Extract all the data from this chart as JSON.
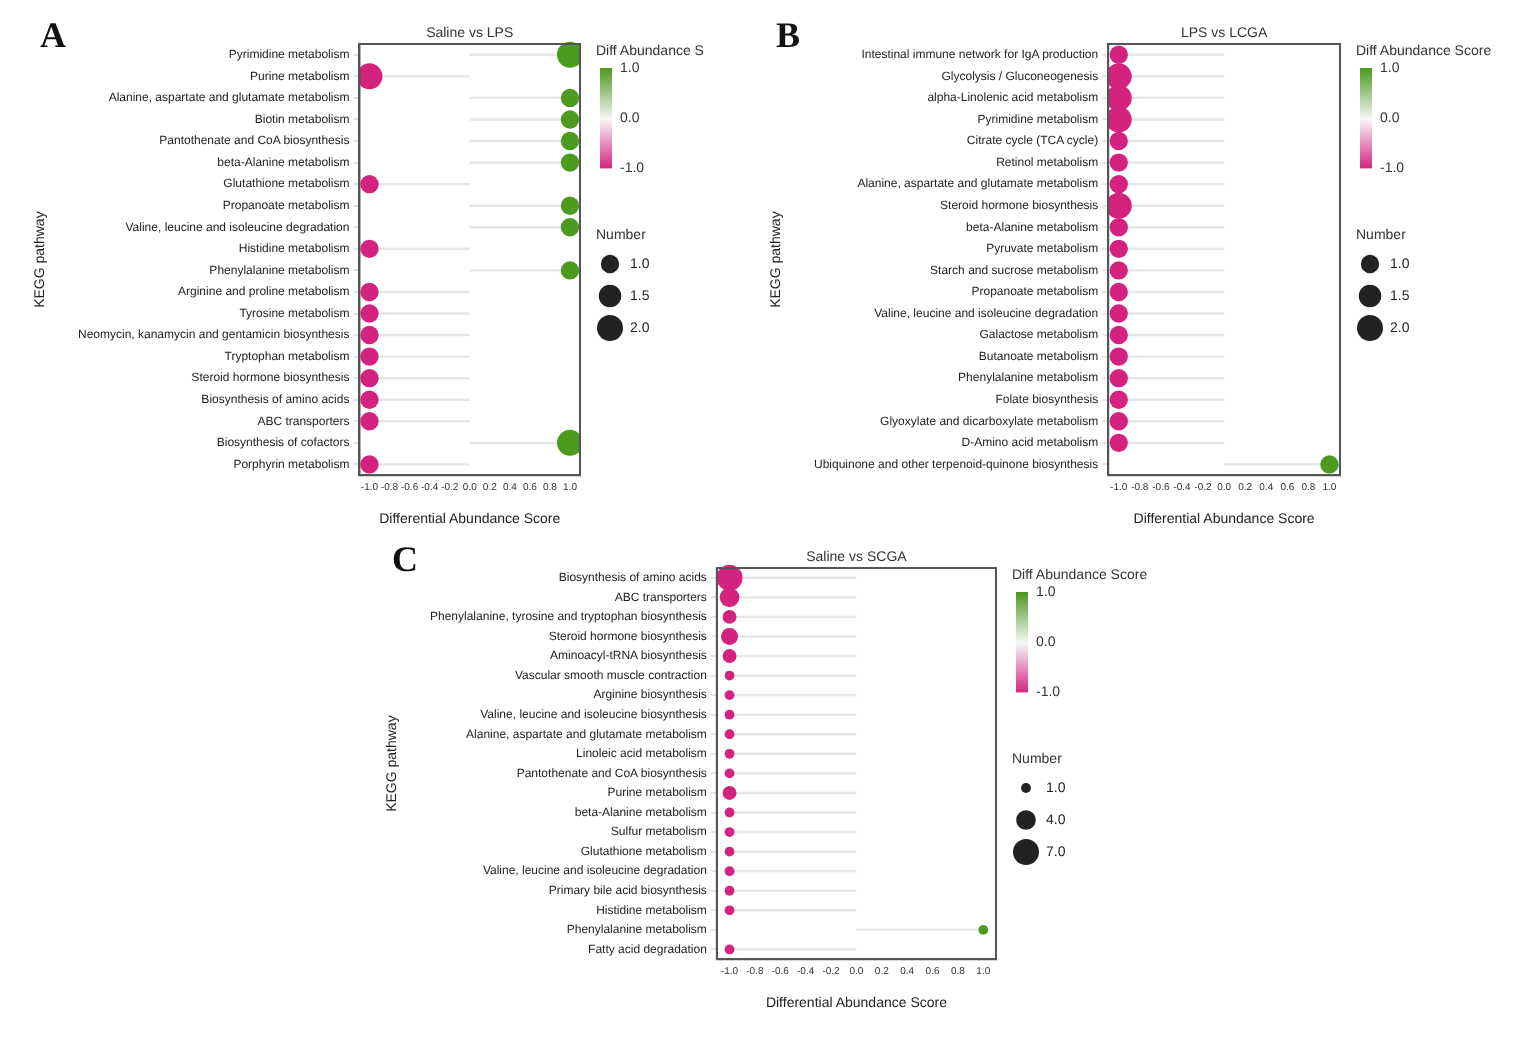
{
  "chart_data": [
    {
      "type": "bubble",
      "orientation": "horizontal",
      "title": "Saline vs LPS",
      "xlabel": "Differential Abundance Score",
      "ylabel": "KEGG pathway",
      "clabel": "Diff Abundance S",
      "legend_title": "Number",
      "annotations": [
        "A"
      ],
      "categories": [
        "Pyrimidine metabolism",
        "Purine metabolism",
        "Alanine, aspartate and glutamate metabolism",
        "Biotin metabolism",
        "Pantothenate and CoA biosynthesis",
        "beta-Alanine metabolism",
        "Glutathione metabolism",
        "Propanoate metabolism",
        "Valine, leucine and isoleucine degradation",
        "Histidine metabolism",
        "Phenylalanine metabolism",
        "Arginine and proline metabolism",
        "Tyrosine metabolism",
        "Neomycin, kanamycin and gentamicin biosynthesis",
        "Tryptophan metabolism",
        "Steroid hormone biosynthesis",
        "Biosynthesis of amino acids",
        "ABC transporters",
        "Biosynthesis of cofactors",
        "Porphyrin metabolism"
      ],
      "values": [
        1,
        -1,
        1,
        1,
        1,
        1,
        -1,
        1,
        1,
        -1,
        1,
        -1,
        -1,
        -1,
        -1,
        -1,
        -1,
        -1,
        1,
        -1
      ],
      "sizes": [
        2,
        2,
        1,
        1,
        1,
        1,
        1,
        1,
        1,
        1,
        1,
        1,
        1,
        1,
        1,
        1,
        1,
        1,
        2,
        1
      ],
      "colors": [
        "#4d9a21",
        "#d4237f",
        "#4d9a21",
        "#4d9a21",
        "#4d9a21",
        "#4d9a21",
        "#d4237f",
        "#4d9a21",
        "#4d9a21",
        "#d4237f",
        "#4d9a21",
        "#d4237f",
        "#d4237f",
        "#d4237f",
        "#d4237f",
        "#d4237f",
        "#d4237f",
        "#d4237f",
        "#4d9a21",
        "#d4237f"
      ],
      "size_legend": [
        {
          "value": 1,
          "label": "1.0"
        },
        {
          "value": 1.5,
          "label": "1.5"
        },
        {
          "value": 2,
          "label": "2.0"
        }
      ],
      "xlim": [
        -1.1,
        1.1
      ],
      "xticks": [
        {
          "value": -1,
          "label": "-1.0"
        },
        {
          "value": -0.8,
          "label": "-0.8"
        },
        {
          "value": -0.6,
          "label": "-0.6"
        },
        {
          "value": -0.4,
          "label": "-0.4"
        },
        {
          "value": -0.2,
          "label": "-0.2"
        },
        {
          "value": 0,
          "label": "0.0"
        },
        {
          "value": 0.2,
          "label": "0.2"
        },
        {
          "value": 0.4,
          "label": "0.4"
        },
        {
          "value": 0.6,
          "label": "0.6"
        },
        {
          "value": 0.8,
          "label": "0.8"
        },
        {
          "value": 1,
          "label": "1.0"
        }
      ],
      "clim": [
        -1,
        1
      ],
      "cticks": [
        {
          "value": 1,
          "label": "1.0"
        },
        {
          "value": 0,
          "label": "0.0"
        },
        {
          "value": -1,
          "label": "-1.0"
        }
      ]
    },
    {
      "type": "bubble",
      "orientation": "horizontal",
      "title": "LPS vs LCGA",
      "xlabel": "Differential Abundance Score",
      "ylabel": "KEGG pathway",
      "clabel": "Diff Abundance Score",
      "legend_title": "Number",
      "annotations": [
        "B"
      ],
      "categories": [
        "Intestinal immune network for IgA production",
        "Glycolysis / Gluconeogenesis",
        "alpha-Linolenic acid metabolism",
        "Pyrimidine metabolism",
        "Citrate cycle (TCA cycle)",
        "Retinol metabolism",
        "Alanine, aspartate and glutamate metabolism",
        "Steroid hormone biosynthesis",
        "beta-Alanine metabolism",
        "Pyruvate metabolism",
        "Starch and sucrose metabolism",
        "Propanoate metabolism",
        "Valine, leucine and isoleucine degradation",
        "Galactose metabolism",
        "Butanoate metabolism",
        "Phenylalanine metabolism",
        "Folate biosynthesis",
        "Glyoxylate and dicarboxylate metabolism",
        "D-Amino acid metabolism",
        "Ubiquinone and other terpenoid-quinone biosynthesis"
      ],
      "values": [
        -1,
        -1,
        -1,
        -1,
        -1,
        -1,
        -1,
        -1,
        -1,
        -1,
        -1,
        -1,
        -1,
        -1,
        -1,
        -1,
        -1,
        -1,
        -1,
        1
      ],
      "sizes": [
        1,
        2,
        2,
        2,
        1,
        1,
        1,
        2,
        1,
        1,
        1,
        1,
        1,
        1,
        1,
        1,
        1,
        1,
        1,
        1
      ],
      "colors": [
        "#d4237f",
        "#d4237f",
        "#d4237f",
        "#d4237f",
        "#d4237f",
        "#d4237f",
        "#d4237f",
        "#d4237f",
        "#d4237f",
        "#d4237f",
        "#d4237f",
        "#d4237f",
        "#d4237f",
        "#d4237f",
        "#d4237f",
        "#d4237f",
        "#d4237f",
        "#d4237f",
        "#d4237f",
        "#4d9a21"
      ],
      "size_legend": [
        {
          "value": 1,
          "label": "1.0"
        },
        {
          "value": 1.5,
          "label": "1.5"
        },
        {
          "value": 2,
          "label": "2.0"
        }
      ],
      "xlim": [
        -1.1,
        1.1
      ],
      "xticks": [
        {
          "value": -1,
          "label": "-1.0"
        },
        {
          "value": -0.8,
          "label": "-0.8"
        },
        {
          "value": -0.6,
          "label": "-0.6"
        },
        {
          "value": -0.4,
          "label": "-0.4"
        },
        {
          "value": -0.2,
          "label": "-0.2"
        },
        {
          "value": 0,
          "label": "0.0"
        },
        {
          "value": 0.2,
          "label": "0.2"
        },
        {
          "value": 0.4,
          "label": "0.4"
        },
        {
          "value": 0.6,
          "label": "0.6"
        },
        {
          "value": 0.8,
          "label": "0.8"
        },
        {
          "value": 1,
          "label": "1.0"
        }
      ],
      "clim": [
        -1,
        1
      ],
      "cticks": [
        {
          "value": 1,
          "label": "1.0"
        },
        {
          "value": 0,
          "label": "0.0"
        },
        {
          "value": -1,
          "label": "-1.0"
        }
      ]
    },
    {
      "type": "bubble",
      "orientation": "horizontal",
      "title": "Saline vs SCGA",
      "xlabel": "Differential Abundance Score",
      "ylabel": "KEGG pathway",
      "clabel": "Diff Abundance Score",
      "legend_title": "Number",
      "annotations": [
        "C"
      ],
      "categories": [
        "Biosynthesis of amino acids",
        "ABC transporters",
        "Phenylalanine, tyrosine and tryptophan biosynthesis",
        "Steroid hormone biosynthesis",
        "Aminoacyl-tRNA biosynthesis",
        "Vascular smooth muscle contraction",
        "Arginine biosynthesis",
        "Valine, leucine and isoleucine biosynthesis",
        "Alanine, aspartate and glutamate metabolism",
        "Linoleic acid metabolism",
        "Pantothenate and CoA biosynthesis",
        "Purine metabolism",
        "beta-Alanine metabolism",
        "Sulfur metabolism",
        "Glutathione metabolism",
        "Valine, leucine and isoleucine degradation",
        "Primary bile acid biosynthesis",
        "Histidine metabolism",
        "Phenylalanine metabolism",
        "Fatty acid degradation"
      ],
      "values": [
        -1,
        -1,
        -1,
        -1,
        -1,
        -1,
        -1,
        -1,
        -1,
        -1,
        -1,
        -1,
        -1,
        -1,
        -1,
        -1,
        -1,
        -1,
        1,
        -1
      ],
      "sizes": [
        7,
        4,
        2,
        3,
        2,
        1,
        1,
        1,
        1,
        1,
        1,
        2,
        1,
        1,
        1,
        1,
        1,
        1,
        1,
        1
      ],
      "colors": [
        "#d4237f",
        "#d4237f",
        "#d4237f",
        "#d4237f",
        "#d4237f",
        "#d4237f",
        "#d4237f",
        "#d4237f",
        "#d4237f",
        "#d4237f",
        "#d4237f",
        "#d4237f",
        "#d4237f",
        "#d4237f",
        "#d4237f",
        "#d4237f",
        "#d4237f",
        "#d4237f",
        "#4d9a21",
        "#d4237f"
      ],
      "size_legend": [
        {
          "value": 1,
          "label": "1.0"
        },
        {
          "value": 4,
          "label": "4.0"
        },
        {
          "value": 7,
          "label": "7.0"
        }
      ],
      "xlim": [
        -1.1,
        1.1
      ],
      "xticks": [
        {
          "value": -1,
          "label": "-1.0"
        },
        {
          "value": -0.8,
          "label": "-0.8"
        },
        {
          "value": -0.6,
          "label": "-0.6"
        },
        {
          "value": -0.4,
          "label": "-0.4"
        },
        {
          "value": -0.2,
          "label": "-0.2"
        },
        {
          "value": 0,
          "label": "0.0"
        },
        {
          "value": 0.2,
          "label": "0.2"
        },
        {
          "value": 0.4,
          "label": "0.4"
        },
        {
          "value": 0.6,
          "label": "0.6"
        },
        {
          "value": 0.8,
          "label": "0.8"
        },
        {
          "value": 1,
          "label": "1.0"
        }
      ],
      "clim": [
        -1,
        1
      ],
      "cticks": [
        {
          "value": 1,
          "label": "1.0"
        },
        {
          "value": 0,
          "label": "0.0"
        },
        {
          "value": -1,
          "label": "-1.0"
        }
      ]
    }
  ]
}
